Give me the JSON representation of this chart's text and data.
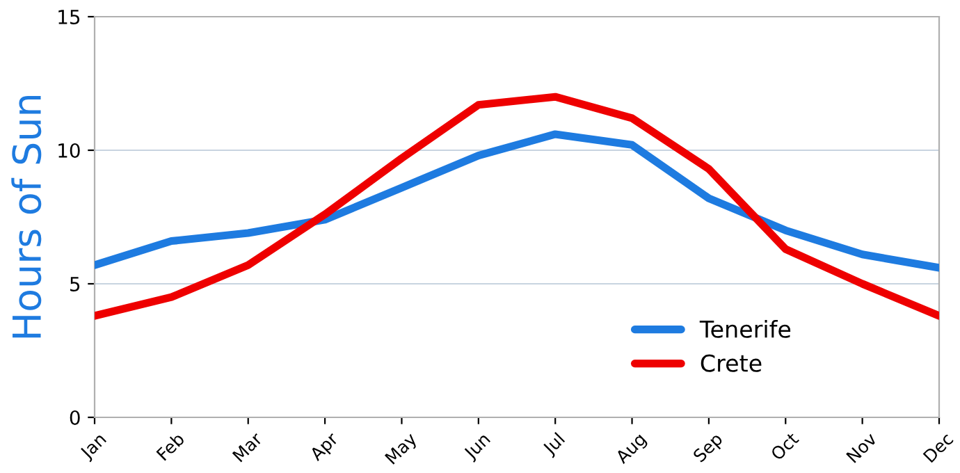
{
  "chart_data": {
    "type": "line",
    "ylabel": "Hours of Sun",
    "categories": [
      "Jan",
      "Feb",
      "Mar",
      "Apr",
      "May",
      "Jun",
      "Jul",
      "Aug",
      "Sep",
      "Oct",
      "Nov",
      "Dec"
    ],
    "series": [
      {
        "name": "Tenerife",
        "color": "#1e7be0",
        "values": [
          5.7,
          6.6,
          6.9,
          7.4,
          8.6,
          9.8,
          10.6,
          10.2,
          8.2,
          7.0,
          6.1,
          5.6
        ]
      },
      {
        "name": "Crete",
        "color": "#ee0000",
        "values": [
          3.8,
          4.5,
          5.7,
          7.6,
          9.7,
          11.7,
          12.0,
          11.2,
          9.3,
          6.3,
          5.0,
          3.8
        ]
      }
    ],
    "ylim": [
      0,
      15
    ],
    "yticks": [
      0,
      5,
      10,
      15
    ],
    "grid": "y",
    "legend": "bottom right",
    "marker": "none",
    "line_style": "solid"
  }
}
